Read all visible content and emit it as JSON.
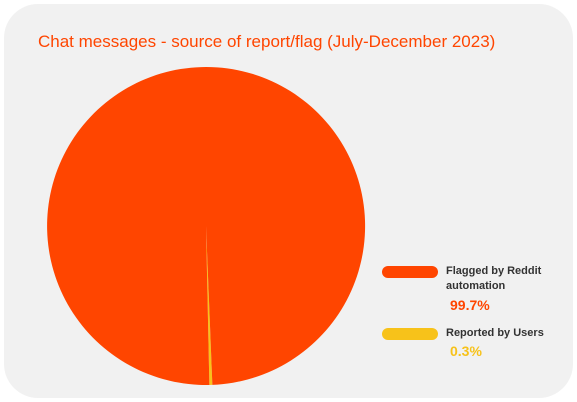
{
  "colors": {
    "background": "#f1f1f1",
    "title": "#ff4500"
  },
  "chart_data": {
    "type": "pie",
    "title": "Chat messages - source of report/flag (July-December 2023)",
    "legend_position": "right",
    "slices": [
      {
        "label": "Flagged by Reddit automation",
        "value": 99.7,
        "value_label": "99.7%",
        "color": "#ff4500"
      },
      {
        "label": "Reported by Users",
        "value": 0.3,
        "value_label": "0.3%",
        "color": "#f7c21a"
      }
    ]
  }
}
